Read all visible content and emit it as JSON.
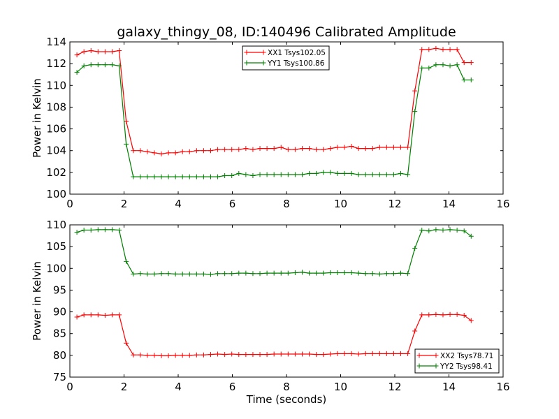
{
  "chart_data": [
    {
      "type": "line",
      "title": "galaxy_thingy_08, ID:140496 Calibrated Amplitude",
      "xlabel": "",
      "ylabel": "Power in Kelvin",
      "xlim": [
        0,
        16
      ],
      "ylim": [
        100,
        114
      ],
      "xticks": [
        "0",
        "2",
        "4",
        "6",
        "8",
        "10",
        "12",
        "14",
        "16"
      ],
      "yticks": [
        "100",
        "102",
        "104",
        "106",
        "108",
        "110",
        "112",
        "114"
      ],
      "grid": false,
      "legend_position": "top-center",
      "x": [
        0.26,
        0.52,
        0.78,
        1.04,
        1.3,
        1.56,
        1.82,
        2.08,
        2.34,
        2.6,
        2.86,
        3.12,
        3.38,
        3.64,
        3.9,
        4.16,
        4.42,
        4.68,
        4.94,
        5.2,
        5.46,
        5.72,
        5.98,
        6.24,
        6.5,
        6.76,
        7.02,
        7.28,
        7.54,
        7.8,
        8.06,
        8.32,
        8.58,
        8.84,
        9.1,
        9.36,
        9.62,
        9.88,
        10.14,
        10.4,
        10.66,
        10.92,
        11.18,
        11.44,
        11.7,
        11.96,
        12.22,
        12.48,
        12.74,
        13.0,
        13.26,
        13.52,
        13.78,
        14.04,
        14.3,
        14.56,
        14.82
      ],
      "series": [
        {
          "name": "XX1 Tsys102.05",
          "color": "#ff0000",
          "values": [
            112.8,
            113.1,
            113.2,
            113.1,
            113.1,
            113.1,
            113.2,
            106.7,
            104.0,
            104.0,
            103.9,
            103.8,
            103.7,
            103.8,
            103.8,
            103.9,
            103.9,
            104.0,
            104.0,
            104.0,
            104.1,
            104.1,
            104.1,
            104.1,
            104.2,
            104.1,
            104.2,
            104.2,
            104.2,
            104.3,
            104.1,
            104.1,
            104.2,
            104.2,
            104.1,
            104.1,
            104.2,
            104.3,
            104.3,
            104.4,
            104.2,
            104.2,
            104.2,
            104.3,
            104.3,
            104.3,
            104.3,
            104.3,
            109.5,
            113.3,
            113.3,
            113.4,
            113.3,
            113.3,
            113.3,
            112.1,
            112.1
          ],
          "x_end": 14.82
        },
        {
          "name": "YY1 Tsys100.86",
          "color": "#008000",
          "values": [
            111.2,
            111.8,
            111.9,
            111.9,
            111.9,
            111.9,
            111.8,
            104.6,
            101.6,
            101.6,
            101.6,
            101.6,
            101.6,
            101.6,
            101.6,
            101.6,
            101.6,
            101.6,
            101.6,
            101.6,
            101.6,
            101.7,
            101.7,
            101.9,
            101.8,
            101.7,
            101.8,
            101.8,
            101.8,
            101.8,
            101.8,
            101.8,
            101.8,
            101.9,
            101.9,
            102.0,
            102.0,
            101.9,
            101.9,
            101.9,
            101.8,
            101.8,
            101.8,
            101.8,
            101.8,
            101.8,
            101.9,
            101.8,
            107.6,
            111.6,
            111.6,
            111.9,
            111.9,
            111.8,
            111.9,
            110.5,
            110.5
          ]
        }
      ]
    },
    {
      "type": "line",
      "title": "",
      "xlabel": "Time (seconds)",
      "ylabel": "Power in Kelvin",
      "xlim": [
        0,
        16
      ],
      "ylim": [
        75,
        110
      ],
      "xticks": [
        "0",
        "2",
        "4",
        "6",
        "8",
        "10",
        "12",
        "14",
        "16"
      ],
      "yticks": [
        "75",
        "80",
        "85",
        "90",
        "95",
        "100",
        "105",
        "110"
      ],
      "grid": false,
      "legend_position": "bottom-right",
      "x": [
        0.26,
        0.52,
        0.78,
        1.04,
        1.3,
        1.56,
        1.82,
        2.08,
        2.34,
        2.6,
        2.86,
        3.12,
        3.38,
        3.64,
        3.9,
        4.16,
        4.42,
        4.68,
        4.94,
        5.2,
        5.46,
        5.72,
        5.98,
        6.24,
        6.5,
        6.76,
        7.02,
        7.28,
        7.54,
        7.8,
        8.06,
        8.32,
        8.58,
        8.84,
        9.1,
        9.36,
        9.62,
        9.88,
        10.14,
        10.4,
        10.66,
        10.92,
        11.18,
        11.44,
        11.7,
        11.96,
        12.22,
        12.48,
        12.74,
        13.0,
        13.26,
        13.52,
        13.78,
        14.04,
        14.3,
        14.56,
        14.82
      ],
      "series": [
        {
          "name": "XX2 Tsys78.71",
          "color": "#ff0000",
          "values": [
            88.8,
            89.3,
            89.3,
            89.3,
            89.2,
            89.3,
            89.3,
            82.8,
            80.1,
            80.1,
            80.0,
            80.0,
            79.9,
            79.9,
            80.0,
            80.0,
            80.0,
            80.1,
            80.1,
            80.2,
            80.3,
            80.2,
            80.3,
            80.2,
            80.2,
            80.2,
            80.2,
            80.2,
            80.3,
            80.3,
            80.3,
            80.3,
            80.3,
            80.3,
            80.2,
            80.2,
            80.3,
            80.4,
            80.4,
            80.4,
            80.3,
            80.4,
            80.4,
            80.4,
            80.4,
            80.4,
            80.4,
            80.4,
            85.6,
            89.3,
            89.3,
            89.4,
            89.3,
            89.4,
            89.4,
            89.2,
            88.0
          ]
        },
        {
          "name": "YY2 Tsys98.41",
          "color": "#008000",
          "values": [
            108.3,
            108.8,
            108.8,
            108.9,
            108.9,
            108.9,
            108.8,
            101.6,
            98.7,
            98.8,
            98.7,
            98.7,
            98.8,
            98.8,
            98.7,
            98.7,
            98.7,
            98.7,
            98.7,
            98.6,
            98.8,
            98.8,
            98.8,
            98.9,
            98.9,
            98.8,
            98.8,
            98.9,
            98.9,
            98.9,
            98.9,
            99.0,
            99.1,
            98.9,
            98.9,
            98.9,
            99.0,
            99.0,
            99.0,
            99.0,
            98.9,
            98.8,
            98.8,
            98.7,
            98.8,
            98.8,
            98.9,
            98.8,
            104.6,
            108.8,
            108.6,
            108.9,
            108.8,
            108.9,
            108.8,
            108.6,
            107.4
          ]
        }
      ]
    }
  ]
}
